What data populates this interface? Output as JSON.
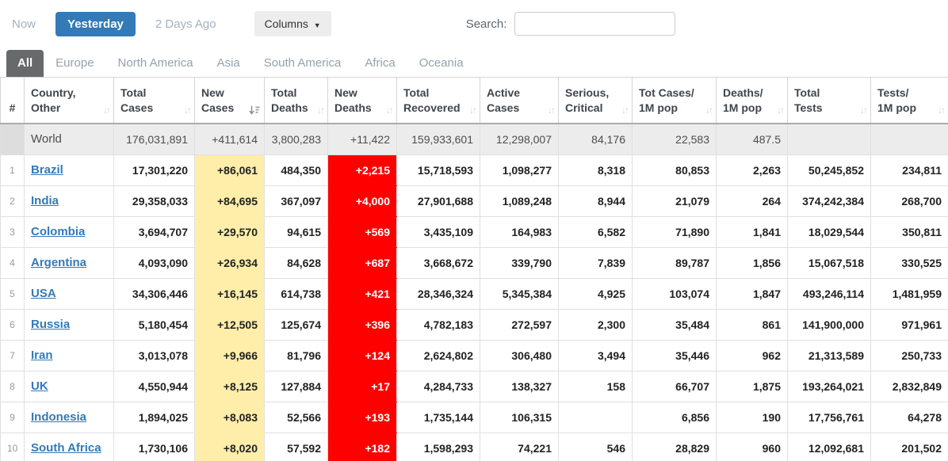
{
  "toolbar": {
    "now_label": "Now",
    "yesterday_label": "Yesterday",
    "two_days_ago_label": "2 Days Ago",
    "columns_label": "Columns",
    "caret": "▼",
    "search_label": "Search:",
    "search_value": ""
  },
  "tabs": [
    {
      "label": "All",
      "active": true
    },
    {
      "label": "Europe",
      "active": false
    },
    {
      "label": "North America",
      "active": false
    },
    {
      "label": "Asia",
      "active": false
    },
    {
      "label": "South America",
      "active": false
    },
    {
      "label": "Africa",
      "active": false
    },
    {
      "label": "Oceania",
      "active": false
    }
  ],
  "colors": {
    "accent_blue": "#337ab7",
    "new_cases_yellow": "#FFEEAA",
    "new_deaths_red": "#FF0000",
    "active_tab_gray": "#67696b"
  },
  "table": {
    "columns": [
      {
        "key": "rank",
        "line1": "",
        "line2": "#",
        "sort": null
      },
      {
        "key": "country",
        "line1": "Country,",
        "line2": "Other",
        "sort": "inactive"
      },
      {
        "key": "total-cases",
        "line1": "Total",
        "line2": "Cases",
        "sort": "inactive"
      },
      {
        "key": "new-cases",
        "line1": "New",
        "line2": "Cases",
        "sort": "desc"
      },
      {
        "key": "total-deaths",
        "line1": "Total",
        "line2": "Deaths",
        "sort": "inactive"
      },
      {
        "key": "new-deaths",
        "line1": "New",
        "line2": "Deaths",
        "sort": "inactive"
      },
      {
        "key": "total-recovered",
        "line1": "Total",
        "line2": "Recovered",
        "sort": "inactive"
      },
      {
        "key": "active-cases",
        "line1": "Active",
        "line2": "Cases",
        "sort": "inactive"
      },
      {
        "key": "serious-critical",
        "line1": "Serious,",
        "line2": "Critical",
        "sort": "inactive"
      },
      {
        "key": "cases-per-1m",
        "line1": "Tot Cases/",
        "line2": "1M pop",
        "sort": "inactive"
      },
      {
        "key": "deaths-per-1m",
        "line1": "Deaths/",
        "line2": "1M pop",
        "sort": "inactive"
      },
      {
        "key": "total-tests",
        "line1": "Total",
        "line2": "Tests",
        "sort": "inactive"
      },
      {
        "key": "tests-per-1m",
        "line1": "Tests/",
        "line2": "1M pop",
        "sort": "inactive"
      }
    ],
    "world_row": {
      "rank": "",
      "country": "World",
      "values": [
        "176,031,891",
        "+411,614",
        "3,800,283",
        "+11,422",
        "159,933,601",
        "12,298,007",
        "84,176",
        "22,583",
        "487.5",
        "",
        ""
      ]
    },
    "rows": [
      {
        "rank": "1",
        "country": "Brazil",
        "values": [
          "17,301,220",
          "+86,061",
          "484,350",
          "+2,215",
          "15,718,593",
          "1,098,277",
          "8,318",
          "80,853",
          "2,263",
          "50,245,852",
          "234,811"
        ]
      },
      {
        "rank": "2",
        "country": "India",
        "values": [
          "29,358,033",
          "+84,695",
          "367,097",
          "+4,000",
          "27,901,688",
          "1,089,248",
          "8,944",
          "21,079",
          "264",
          "374,242,384",
          "268,700"
        ]
      },
      {
        "rank": "3",
        "country": "Colombia",
        "values": [
          "3,694,707",
          "+29,570",
          "94,615",
          "+569",
          "3,435,109",
          "164,983",
          "6,582",
          "71,890",
          "1,841",
          "18,029,544",
          "350,811"
        ]
      },
      {
        "rank": "4",
        "country": "Argentina",
        "values": [
          "4,093,090",
          "+26,934",
          "84,628",
          "+687",
          "3,668,672",
          "339,790",
          "7,839",
          "89,787",
          "1,856",
          "15,067,518",
          "330,525"
        ]
      },
      {
        "rank": "5",
        "country": "USA",
        "values": [
          "34,306,446",
          "+16,145",
          "614,738",
          "+421",
          "28,346,324",
          "5,345,384",
          "4,925",
          "103,074",
          "1,847",
          "493,246,114",
          "1,481,959"
        ]
      },
      {
        "rank": "6",
        "country": "Russia",
        "values": [
          "5,180,454",
          "+12,505",
          "125,674",
          "+396",
          "4,782,183",
          "272,597",
          "2,300",
          "35,484",
          "861",
          "141,900,000",
          "971,961"
        ]
      },
      {
        "rank": "7",
        "country": "Iran",
        "values": [
          "3,013,078",
          "+9,966",
          "81,796",
          "+124",
          "2,624,802",
          "306,480",
          "3,494",
          "35,446",
          "962",
          "21,313,589",
          "250,733"
        ]
      },
      {
        "rank": "8",
        "country": "UK",
        "values": [
          "4,550,944",
          "+8,125",
          "127,884",
          "+17",
          "4,284,733",
          "138,327",
          "158",
          "66,707",
          "1,875",
          "193,264,021",
          "2,832,849"
        ]
      },
      {
        "rank": "9",
        "country": "Indonesia",
        "values": [
          "1,894,025",
          "+8,083",
          "52,566",
          "+193",
          "1,735,144",
          "106,315",
          "",
          "6,856",
          "190",
          "17,756,761",
          "64,278"
        ]
      },
      {
        "rank": "10",
        "country": "South Africa",
        "values": [
          "1,730,106",
          "+8,020",
          "57,592",
          "+182",
          "1,598,293",
          "74,221",
          "546",
          "28,829",
          "960",
          "12,092,681",
          "201,502"
        ]
      }
    ]
  }
}
